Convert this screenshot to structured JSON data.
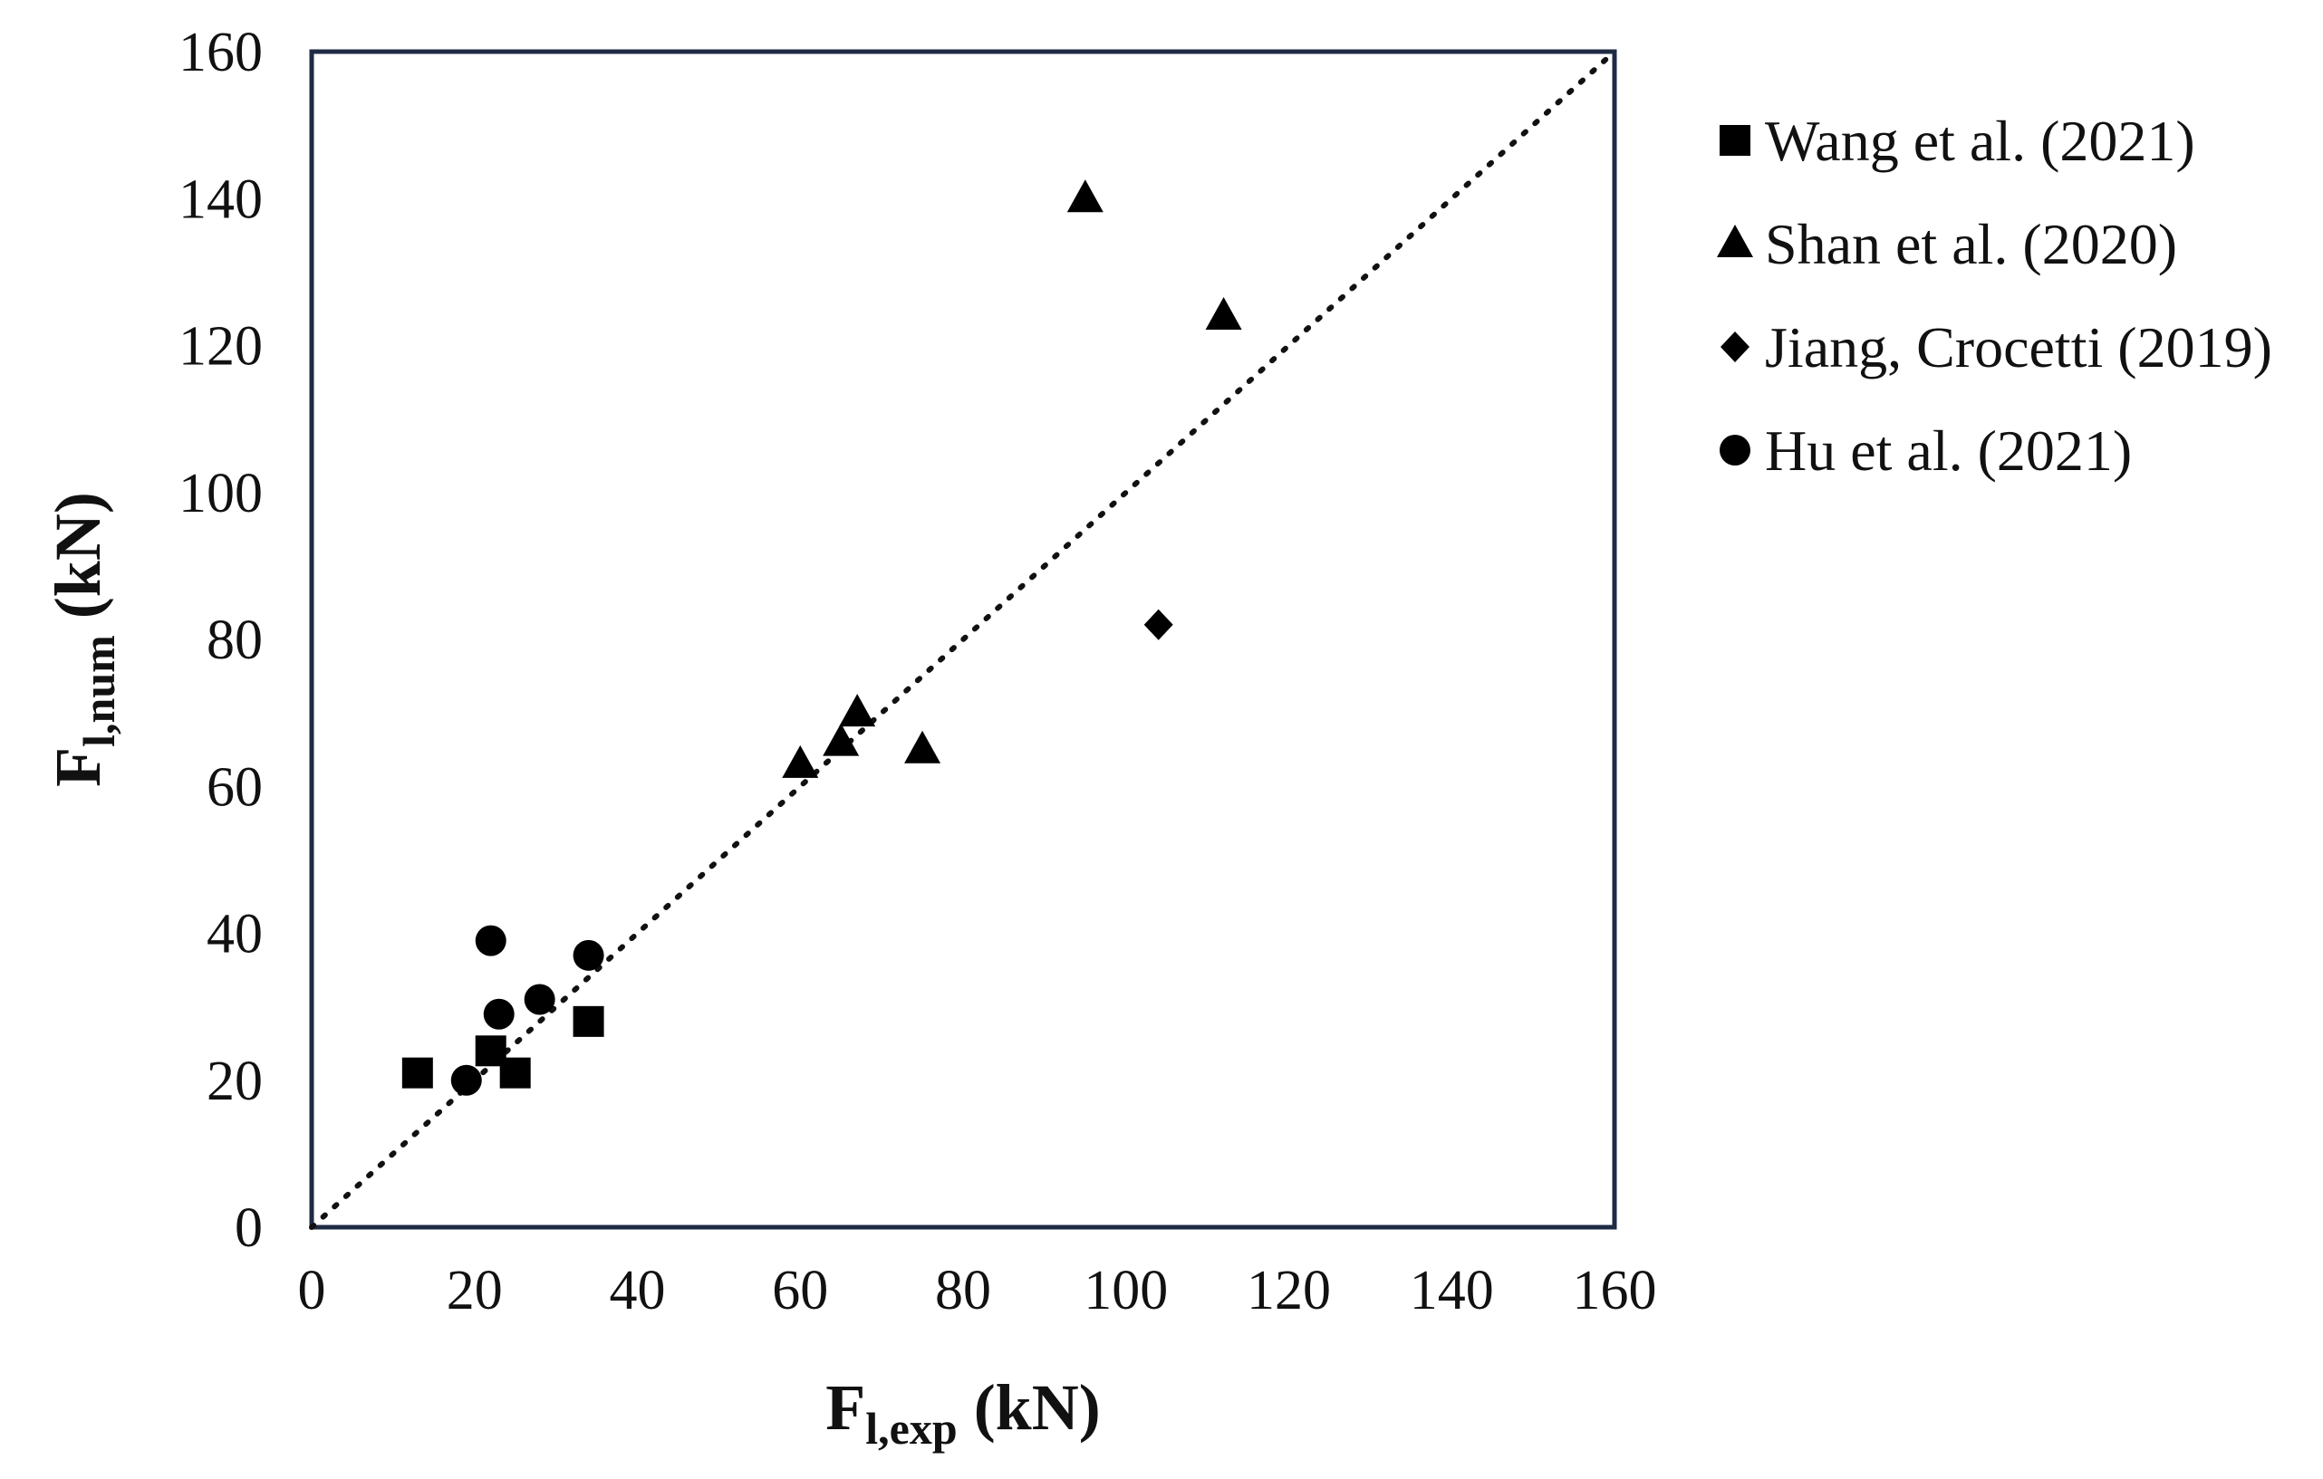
{
  "chart_data": {
    "type": "scatter",
    "title": "",
    "xlabel": {
      "main": "F",
      "sub": "l,exp",
      "unit": " (kN)"
    },
    "ylabel": {
      "main": "F",
      "sub": "l,num",
      "unit": " (kN)"
    },
    "xlim": [
      0,
      160
    ],
    "ylim": [
      0,
      160
    ],
    "xticks": [
      0,
      20,
      40,
      60,
      80,
      100,
      120,
      140,
      160
    ],
    "yticks": [
      0,
      20,
      40,
      60,
      80,
      100,
      120,
      140,
      160
    ],
    "grid": false,
    "legend_position": "right",
    "reference_line": {
      "type": "dotted",
      "from": [
        0,
        0
      ],
      "to": [
        160,
        160
      ]
    },
    "series": [
      {
        "name": "Wang et al. (2021)",
        "marker": "square",
        "points": [
          [
            13,
            21
          ],
          [
            22,
            24
          ],
          [
            25,
            21
          ],
          [
            34,
            28
          ]
        ]
      },
      {
        "name": "Shan et al. (2020)",
        "marker": "triangle",
        "points": [
          [
            95,
            140
          ],
          [
            112,
            124
          ],
          [
            60,
            63
          ],
          [
            65,
            66
          ],
          [
            67,
            70
          ],
          [
            75,
            65
          ]
        ]
      },
      {
        "name": "Jiang, Crocetti (2019)",
        "marker": "diamond",
        "points": [
          [
            104,
            82
          ]
        ]
      },
      {
        "name": "Hu et al. (2021)",
        "marker": "circle",
        "points": [
          [
            22,
            39
          ],
          [
            34,
            37
          ],
          [
            28,
            31
          ],
          [
            23,
            29
          ],
          [
            19,
            20
          ]
        ]
      }
    ]
  }
}
